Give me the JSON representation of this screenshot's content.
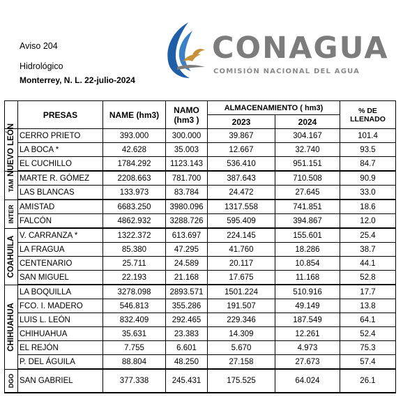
{
  "header": {
    "aviso": "Aviso 204",
    "type": "Hidrológico",
    "place_date": "Monterrey, N. L. 22-julio-2024"
  },
  "logo": {
    "name": "CONAGUA",
    "subtitle": "COMISIÓN NACIONAL DEL AGUA",
    "colors": {
      "blue": "#1f5fa8",
      "gold": "#c7913c",
      "gray": "#7c7c7c"
    }
  },
  "table": {
    "headers": {
      "presas": "PRESAS",
      "name": "NAME (hm3)",
      "namo": "NAMO (hm3 )",
      "almacenamiento": "ALMACENAMIENTO ( hm3)",
      "y2023": "2023",
      "y2024": "2024",
      "llenado": "% DE LLENADO"
    },
    "groups": [
      {
        "state": "NUEVO LEÓN",
        "rows": [
          [
            "CERRO PRIETO",
            "393.000",
            "300.000",
            "39.867",
            "304.167",
            "101.4"
          ],
          [
            "LA BOCA *",
            "42.628",
            "35.003",
            "12.667",
            "32.740",
            "93.5"
          ],
          [
            "EL CUCHILLO",
            "1784.292",
            "1123.143",
            "536.410",
            "951.151",
            "84.7"
          ]
        ]
      },
      {
        "state": "TAM",
        "rows": [
          [
            "MARTE R. GÓMEZ",
            "2208.663",
            "781.700",
            "387.643",
            "710.508",
            "90.9"
          ],
          [
            "LAS BLANCAS",
            "133.973",
            "83.784",
            "24.472",
            "27.645",
            "33.0"
          ]
        ]
      },
      {
        "state": "INTER",
        "rows": [
          [
            "AMISTAD",
            "6683.250",
            "3980.096",
            "1317.558",
            "741.851",
            "18.6"
          ],
          [
            "FALCÓN",
            "4862.932",
            "3288.726",
            "595.409",
            "394.867",
            "12.0"
          ]
        ]
      },
      {
        "state": "COAHUILA",
        "rows": [
          [
            "V. CARRANZA *",
            "1322.372",
            "613.697",
            "224.145",
            "155.601",
            "25.4"
          ],
          [
            "LA FRAGUA",
            "85.380",
            "47.295",
            "41.760",
            "18.286",
            "38.7"
          ],
          [
            "CENTENARIO",
            "25.711",
            "24.589",
            "20.117",
            "10.854",
            "44.1"
          ],
          [
            "SAN MIGUEL",
            "22.193",
            "21.168",
            "17.675",
            "11.168",
            "52.8"
          ]
        ]
      },
      {
        "state": "CHIHUAHUA",
        "rows": [
          [
            "LA BOQUILLA",
            "3278.098",
            "2893.571",
            "1501.224",
            "510.916",
            "17.7"
          ],
          [
            "FCO. I. MADERO",
            "546.813",
            "355.286",
            "191.507",
            "49.149",
            "13.8"
          ],
          [
            "LUIS L. LEÓN",
            "832.409",
            "292.465",
            "229.346",
            "187.549",
            "64.1"
          ],
          [
            "CHIHUAHUA",
            "35.631",
            "23.383",
            "14.309",
            "12.261",
            "52.4"
          ],
          [
            "EL REJÓN",
            "7.755",
            "6.601",
            "5.670",
            "4.973",
            "75.3"
          ],
          [
            "P. DEL ÁGUILA",
            "88.804",
            "48.250",
            "27.158",
            "27.673",
            "57.4"
          ]
        ]
      },
      {
        "state": "DGO",
        "rows": [
          [
            "SAN GABRIEL",
            "377.338",
            "245.431",
            "175.525",
            "64.024",
            "26.1"
          ]
        ]
      }
    ]
  }
}
